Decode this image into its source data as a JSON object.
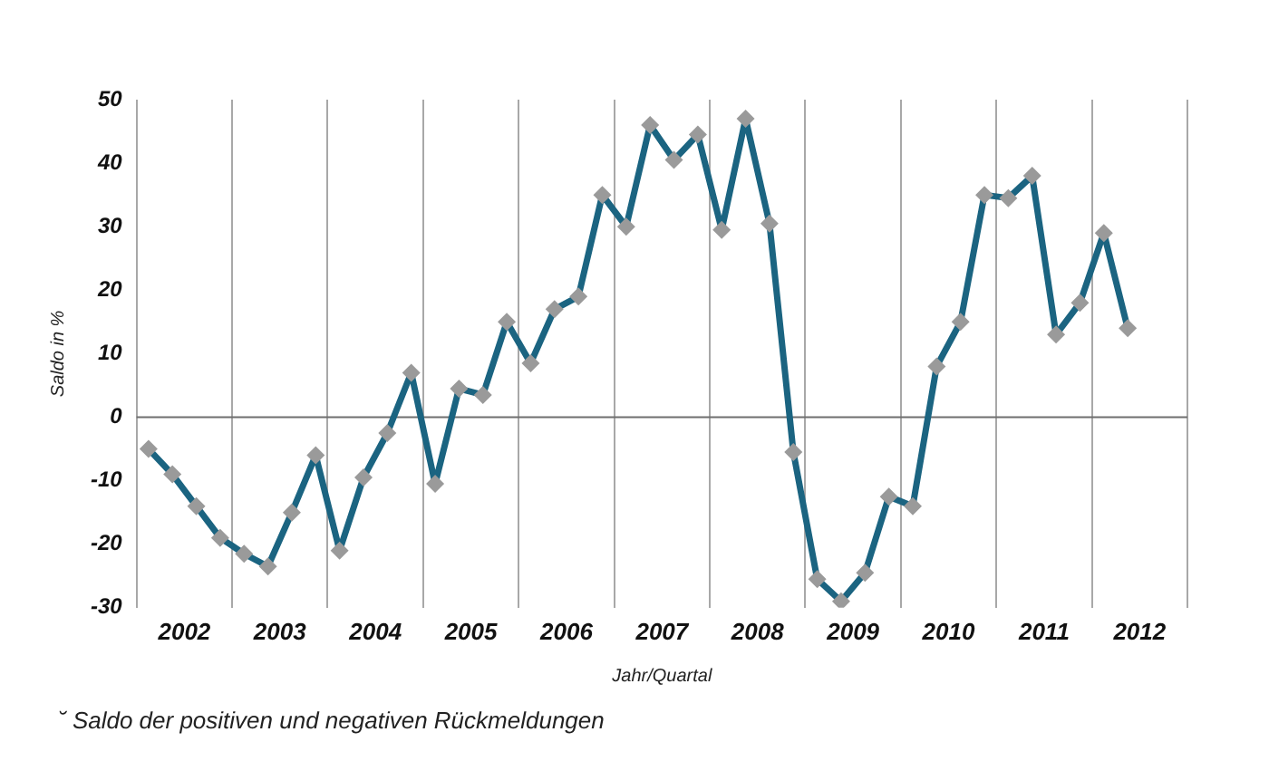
{
  "chart_data": {
    "type": "line",
    "ylabel": "Saldo in %",
    "xlabel": "Jahr/Quartal",
    "annotations": [
      "˘ Saldo der positiven und negativen Rückmeldungen"
    ],
    "x": [
      2002.125,
      2002.375,
      2002.625,
      2002.875,
      2003.125,
      2003.375,
      2003.625,
      2003.875,
      2004.125,
      2004.375,
      2004.625,
      2004.875,
      2005.125,
      2005.375,
      2005.625,
      2005.875,
      2006.125,
      2006.375,
      2006.625,
      2006.875,
      2007.125,
      2007.375,
      2007.625,
      2007.875,
      2008.125,
      2008.375,
      2008.625,
      2008.875,
      2009.125,
      2009.375,
      2009.625,
      2009.875,
      2010.125,
      2010.375,
      2010.625,
      2010.875,
      2011.125,
      2011.375,
      2011.625,
      2011.875,
      2012.125,
      2012.375
    ],
    "series": [
      {
        "color": "#1b6481",
        "values": [
          -5,
          -9,
          -14,
          -19,
          -21.5,
          -23.5,
          -15,
          -6,
          -21,
          -9.5,
          -2.5,
          7,
          -10.5,
          4.5,
          3.5,
          15,
          8.5,
          17,
          19,
          35,
          30,
          46,
          40.5,
          44.5,
          29.5,
          47,
          30.5,
          -5.5,
          -25.5,
          -29,
          -24.5,
          -12.5,
          -14,
          8,
          15,
          35,
          34.5,
          38,
          13,
          18,
          29,
          14
        ]
      }
    ],
    "marker": "diamond",
    "line_style": "solid",
    "grid": "x",
    "legend": false,
    "xlim": [
      2002,
      2013
    ],
    "ylim": [
      -30,
      50
    ],
    "yticks": [
      -30,
      -20,
      -10,
      0,
      10,
      20,
      30,
      40,
      50
    ],
    "xticks": [
      {
        "value": 2002,
        "label": null
      },
      {
        "value": 2002.5,
        "label": "2002"
      },
      {
        "value": 2003,
        "label": null
      },
      {
        "value": 2003.5,
        "label": "2003"
      },
      {
        "value": 2004,
        "label": null
      },
      {
        "value": 2004.5,
        "label": "2004"
      },
      {
        "value": 2005,
        "label": null
      },
      {
        "value": 2005.5,
        "label": "2005"
      },
      {
        "value": 2006,
        "label": null
      },
      {
        "value": 2006.5,
        "label": "2006"
      },
      {
        "value": 2007,
        "label": null
      },
      {
        "value": 2007.5,
        "label": "2007"
      },
      {
        "value": 2008,
        "label": null
      },
      {
        "value": 2008.5,
        "label": "2008"
      },
      {
        "value": 2009,
        "label": null
      },
      {
        "value": 2009.5,
        "label": "2009"
      },
      {
        "value": 2010,
        "label": null
      },
      {
        "value": 2010.5,
        "label": "2010"
      },
      {
        "value": 2011,
        "label": null
      },
      {
        "value": 2011.5,
        "label": "2011"
      },
      {
        "value": 2012,
        "label": null
      },
      {
        "value": 2012.5,
        "label": "2012"
      },
      {
        "value": 2013,
        "label": null
      }
    ],
    "ref_lines": [
      {
        "axis": "y",
        "value": 0,
        "color": "#6e6e6e"
      }
    ]
  }
}
